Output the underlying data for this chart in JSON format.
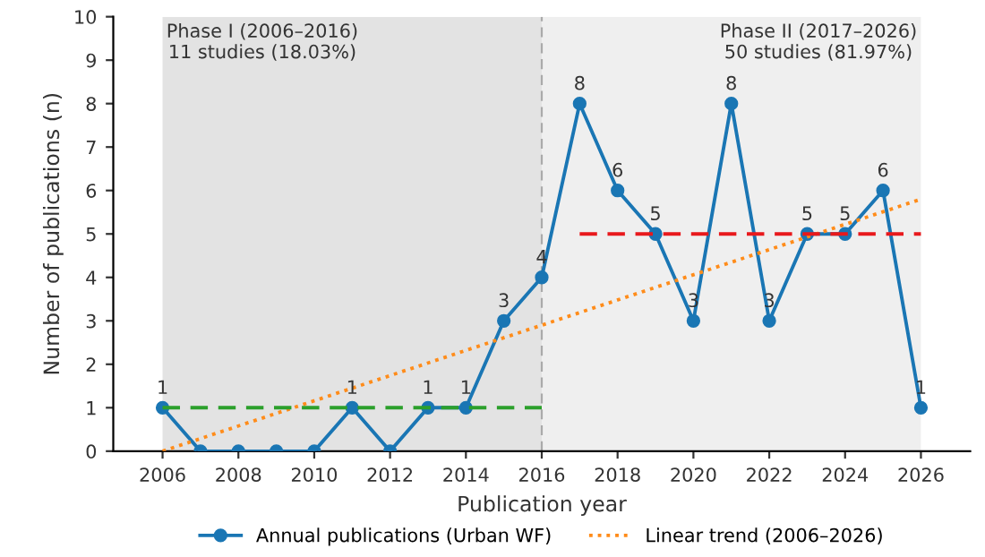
{
  "chart_data": {
    "type": "line",
    "xlabel": "Publication year",
    "ylabel": "Number of publications (n)",
    "x": [
      2006,
      2007,
      2008,
      2009,
      2010,
      2011,
      2012,
      2013,
      2014,
      2015,
      2016,
      2017,
      2018,
      2019,
      2020,
      2021,
      2022,
      2023,
      2024,
      2025,
      2026
    ],
    "series": [
      {
        "name": "Annual publications (Urban WF)",
        "color": "#1a76b4",
        "marker": "circle",
        "line_style": "solid",
        "values": [
          1,
          0,
          0,
          0,
          0,
          1,
          0,
          1,
          1,
          3,
          4,
          8,
          6,
          5,
          3,
          8,
          3,
          5,
          5,
          6,
          1
        ],
        "value_labels": [
          "1",
          null,
          null,
          null,
          null,
          "1",
          null,
          "1",
          "1",
          "3",
          "4",
          "8",
          "6",
          "5",
          "3",
          "8",
          "3",
          "5",
          "5",
          "6",
          "1"
        ]
      },
      {
        "name": "Linear trend (2006–2026)",
        "color": "#ff8c1a",
        "marker": "none",
        "line_style": "dotted",
        "x": [
          2006,
          2026
        ],
        "values": [
          0.0,
          5.8
        ]
      },
      {
        "color": "#2ca02c",
        "marker": "none",
        "line_style": "dashed",
        "x": [
          2006,
          2016
        ],
        "values": [
          1,
          1
        ]
      },
      {
        "color": "#e8191c",
        "marker": "none",
        "line_style": "dashed",
        "x": [
          2017,
          2026
        ],
        "values": [
          5,
          5
        ]
      }
    ],
    "bands": [
      {
        "axis": "x",
        "from": 2006,
        "to": 2016,
        "label": "Phase I (2006–2016)\n11 studies (18.03%)",
        "color": "#e3e3e3"
      },
      {
        "axis": "x",
        "from": 2016,
        "to": 2026,
        "label": "Phase II (2017–2026)\n50 studies (81.97%)",
        "color": "#efefef"
      }
    ],
    "ref_lines": [
      {
        "axis": "x",
        "value": 2016,
        "color": "#aaaaaa",
        "line_style": "dashed"
      }
    ],
    "xlim": [
      2004.7,
      2027.3
    ],
    "xticks": [
      2006,
      2008,
      2010,
      2012,
      2014,
      2016,
      2018,
      2020,
      2022,
      2024,
      2026
    ],
    "ylim": [
      0,
      10
    ],
    "yticks": [
      0,
      1,
      2,
      3,
      4,
      5,
      6,
      7,
      8,
      9,
      10
    ],
    "grid": false,
    "legend": "bottom"
  }
}
